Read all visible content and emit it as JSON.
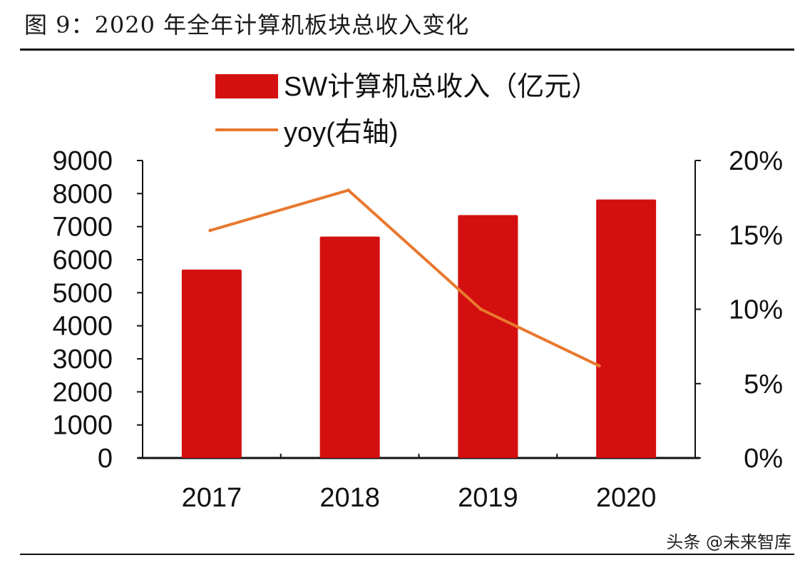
{
  "page_title": "图 9：2020 年全年计算机板块总收入变化",
  "watermark": "头条 @未来智库",
  "colors": {
    "bar": "#d40f0f",
    "line": "#e8782e",
    "axis": "#111111",
    "text": "#111111"
  },
  "chart_data": {
    "type": "bar",
    "categories": [
      "2017",
      "2018",
      "2019",
      "2020"
    ],
    "series": [
      {
        "name": "SW计算机总收入（亿元）",
        "type": "bar",
        "axis": "left",
        "values": [
          5700,
          6700,
          7350,
          7820
        ]
      },
      {
        "name": "yoy(右轴)",
        "type": "line",
        "axis": "right",
        "values": [
          15.3,
          18.0,
          10.0,
          6.2
        ]
      }
    ],
    "y_left": {
      "min": 0,
      "max": 9000,
      "ticks": [
        "0",
        "1000",
        "2000",
        "3000",
        "4000",
        "5000",
        "6000",
        "7000",
        "8000",
        "9000"
      ]
    },
    "y_right": {
      "min": 0,
      "max": 20,
      "ticks": [
        "0%",
        "5%",
        "10%",
        "15%",
        "20%"
      ]
    },
    "legend_position": "top-left",
    "grid": false
  }
}
